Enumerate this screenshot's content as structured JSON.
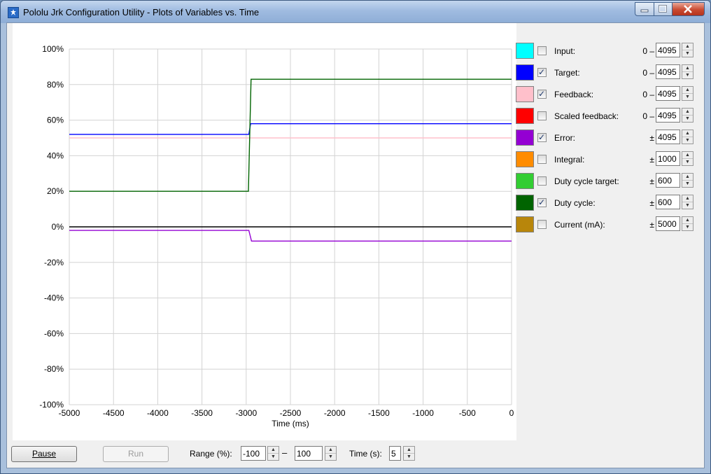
{
  "window": {
    "title": "Pololu Jrk Configuration Utility - Plots of Variables vs. Time",
    "icons": {
      "app": "pololu-app-icon",
      "minimize": "minimize-icon",
      "maximize": "maximize-icon",
      "close": "close-icon"
    }
  },
  "chart_data": {
    "type": "line",
    "xlabel": "Time (ms)",
    "ylabel": "",
    "xlim": [
      -5000,
      0
    ],
    "ylim": [
      -100,
      100
    ],
    "grid": true,
    "xticks": [
      -5000,
      -4500,
      -4000,
      -3500,
      -3000,
      -2500,
      -2000,
      -1500,
      -1000,
      -500,
      0
    ],
    "yticks": [
      100,
      80,
      60,
      40,
      20,
      0,
      -20,
      -40,
      -60,
      -80,
      -100
    ],
    "xtick_labels": [
      "-5000",
      "-4500",
      "-4000",
      "-3500",
      "-3000",
      "-2500",
      "-2000",
      "-1500",
      "-1000",
      "-500",
      "0"
    ],
    "ytick_labels": [
      "100%",
      "80%",
      "60%",
      "40%",
      "20%",
      "0%",
      "-20%",
      "-40%",
      "-60%",
      "-80%",
      "-100%"
    ],
    "series": [
      {
        "name": "Target",
        "color": "#0000ff",
        "x": [
          -5000,
          -2970,
          -2950,
          0
        ],
        "y": [
          52,
          52,
          58,
          58
        ]
      },
      {
        "name": "Feedback",
        "color": "#ffc0cb",
        "x": [
          -5000,
          0
        ],
        "y": [
          50,
          50
        ]
      },
      {
        "name": "Error",
        "color": "#9400d3",
        "x": [
          -5000,
          -2970,
          -2940,
          0
        ],
        "y": [
          -2,
          -2,
          -8,
          -8
        ]
      },
      {
        "name": "Duty cycle",
        "color": "#006400",
        "x": [
          -5000,
          -2975,
          -2945,
          0
        ],
        "y": [
          20,
          20,
          83,
          83
        ]
      }
    ],
    "zero_line_color": "#000000"
  },
  "variables": [
    {
      "label": "Input:",
      "color": "#00ffff",
      "checked": false,
      "prefix": "0 –",
      "value": "4095",
      "swatch_icon": "color-swatch"
    },
    {
      "label": "Target:",
      "color": "#0000ff",
      "checked": true,
      "prefix": "0 –",
      "value": "4095",
      "swatch_icon": "color-swatch"
    },
    {
      "label": "Feedback:",
      "color": "#ffc0cb",
      "checked": true,
      "prefix": "0 –",
      "value": "4095",
      "swatch_icon": "color-swatch"
    },
    {
      "label": "Scaled feedback:",
      "color": "#ff0000",
      "checked": false,
      "prefix": "0 –",
      "value": "4095",
      "swatch_icon": "color-swatch"
    },
    {
      "label": "Error:",
      "color": "#9400d3",
      "checked": true,
      "prefix": "±",
      "value": "4095",
      "swatch_icon": "color-swatch"
    },
    {
      "label": "Integral:",
      "color": "#ff8c00",
      "checked": false,
      "prefix": "±",
      "value": "1000",
      "swatch_icon": "color-swatch"
    },
    {
      "label": "Duty cycle target:",
      "color": "#32cd32",
      "checked": false,
      "prefix": "±",
      "value": "600",
      "swatch_icon": "color-swatch"
    },
    {
      "label": "Duty cycle:",
      "color": "#006400",
      "checked": true,
      "prefix": "±",
      "value": "600",
      "swatch_icon": "color-swatch"
    },
    {
      "label": "Current (mA):",
      "color": "#b8860b",
      "checked": false,
      "prefix": "±",
      "value": "5000",
      "swatch_icon": "color-swatch"
    }
  ],
  "bottom": {
    "pause_label": "Pause",
    "run_label": "Run",
    "range_label": "Range (%):",
    "range_min": "-100",
    "range_dash": "–",
    "range_max": "100",
    "time_label": "Time (s):",
    "time_value": "5"
  }
}
